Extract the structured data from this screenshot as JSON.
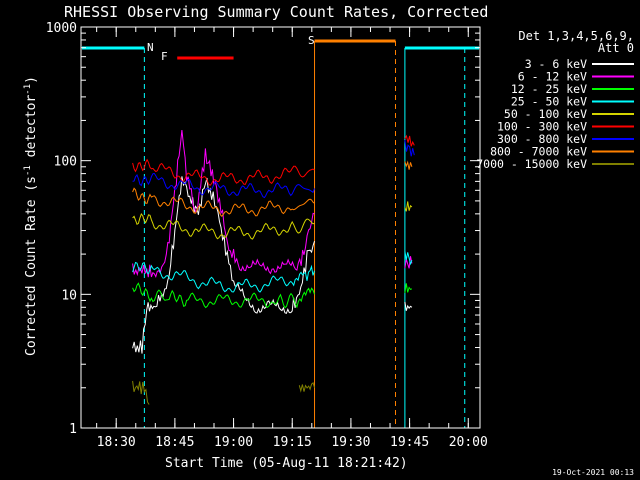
{
  "chart_data": {
    "type": "line",
    "title": "RHESSI Observing Summary Count Rates, Corrected",
    "xlabel": "Start Time (05-Aug-11 18:21:42)",
    "ylabel_main": "Corrected Count Rate (s",
    "ylabel_sup1": "-1",
    "ylabel_mid": " detector",
    "ylabel_sup2": "-1",
    "ylabel_end": ")",
    "y_scale": "log",
    "ylim": [
      1,
      1000
    ],
    "xlim_minutes": [
      18.35,
      20.05
    ],
    "x_ticks": [
      {
        "label": "18:30",
        "t": 18.5
      },
      {
        "label": "18:45",
        "t": 18.75
      },
      {
        "label": "19:00",
        "t": 19.0
      },
      {
        "label": "19:15",
        "t": 19.25
      },
      {
        "label": "19:30",
        "t": 19.5
      },
      {
        "label": "19:45",
        "t": 19.75
      },
      {
        "label": "20:00",
        "t": 20.0
      }
    ],
    "y_ticks": [
      {
        "label": "1",
        "v": 1
      },
      {
        "label": "10",
        "v": 10
      },
      {
        "label": "100",
        "v": 100
      },
      {
        "label": "1000",
        "v": 1000
      }
    ],
    "legend_header": [
      "Det 1,3,4,5,6,9,",
      "Att 0"
    ],
    "legend_placement": "top-right",
    "timestamp": "19-Oct-2021 00:13",
    "markers": [
      {
        "label": "N",
        "color": "#00ffff",
        "t": 18.62
      },
      {
        "label": "F",
        "color": "#ff0000",
        "t": 18.73
      },
      {
        "label": "S",
        "color": "#ff8000",
        "t": 19.35
      }
    ],
    "series": [
      {
        "name": "3 - 6 keV",
        "color": "#ffffff",
        "segments": [
          {
            "t": [
              18.57,
              18.61,
              18.63,
              18.66,
              18.7,
              18.72,
              18.75,
              18.78,
              18.82,
              18.85,
              18.88,
              18.92,
              18.96,
              19.0,
              19.05,
              19.1,
              19.15,
              19.2,
              19.25,
              19.28,
              19.3,
              19.32,
              19.345
            ],
            "v": [
              4,
              4,
              8,
              8,
              10,
              12,
              30,
              75,
              50,
              40,
              70,
              50,
              25,
              12,
              9,
              8,
              8,
              8,
              8,
              10,
              14,
              22,
              25
            ]
          },
          {
            "t": [
              19.73,
              19.76
            ],
            "v": [
              8,
              8
            ]
          }
        ]
      },
      {
        "name": "6 - 12 keV",
        "color": "#ff00ff",
        "segments": [
          {
            "t": [
              18.57,
              18.61,
              18.65,
              18.7,
              18.72,
              18.75,
              18.78,
              18.8,
              18.84,
              18.88,
              18.91,
              18.94,
              18.98,
              19.02,
              19.07,
              19.12,
              19.17,
              19.22,
              19.27,
              19.3,
              19.32,
              19.345
            ],
            "v": [
              15,
              15,
              15,
              16,
              22,
              60,
              170,
              80,
              40,
              110,
              80,
              50,
              22,
              17,
              16,
              16,
              16,
              16,
              16,
              20,
              30,
              40
            ]
          },
          {
            "t": [
              19.73,
              19.76
            ],
            "v": [
              17,
              17
            ]
          }
        ]
      },
      {
        "name": "12 - 25 keV",
        "color": "#00ff00",
        "segments": [
          {
            "t": [
              18.57,
              18.65,
              18.72,
              18.8,
              18.9,
              19.0,
              19.1,
              19.2,
              19.27,
              19.32,
              19.345
            ],
            "v": [
              11,
              10,
              9.5,
              9,
              9,
              9,
              9,
              9,
              9,
              10,
              10
            ]
          },
          {
            "t": [
              19.73,
              19.76
            ],
            "v": [
              11,
              11
            ]
          }
        ]
      },
      {
        "name": "25 - 50 keV",
        "color": "#00ffff",
        "segments": [
          {
            "t": [
              18.57,
              18.65,
              18.75,
              18.85,
              18.95,
              19.05,
              19.15,
              19.25,
              19.3,
              19.345
            ],
            "v": [
              16,
              15,
              14,
              12.5,
              11.5,
              11.5,
              12,
              13,
              14,
              15
            ]
          },
          {
            "t": [
              19.73,
              19.76
            ],
            "v": [
              20,
              18
            ]
          }
        ]
      },
      {
        "name": "50 - 100 keV",
        "color": "#d4d400",
        "segments": [
          {
            "t": [
              18.57,
              18.65,
              18.75,
              18.85,
              18.95,
              19.05,
              19.15,
              19.25,
              19.345
            ],
            "v": [
              37,
              35,
              32,
              30,
              29,
              29,
              30,
              32,
              34
            ]
          },
          {
            "t": [
              19.73,
              19.76
            ],
            "v": [
              45,
              45
            ]
          }
        ]
      },
      {
        "name": "100 - 300 keV",
        "color": "#ff0000",
        "segments": [
          {
            "t": [
              18.57,
              18.65,
              18.75,
              18.85,
              18.95,
              19.05,
              19.15,
              19.25,
              19.345
            ],
            "v": [
              95,
              90,
              80,
              75,
              73,
              74,
              76,
              80,
              85
            ]
          },
          {
            "t": [
              19.73,
              19.75,
              19.77
            ],
            "v": [
              150,
              140,
              130
            ]
          }
        ]
      },
      {
        "name": "300 - 800 keV",
        "color": "#0000ff",
        "segments": [
          {
            "t": [
              18.57,
              18.65,
              18.75,
              18.85,
              18.95,
              19.05,
              19.15,
              19.25,
              19.345
            ],
            "v": [
              75,
              72,
              67,
              63,
              61,
              60,
              60,
              61,
              62
            ]
          },
          {
            "t": [
              19.73,
              19.75,
              19.77
            ],
            "v": [
              130,
              120,
              110
            ]
          }
        ]
      },
      {
        "name": "800 - 7000 keV",
        "color": "#ff8000",
        "segments": [
          {
            "t": [
              18.57,
              18.65,
              18.75,
              18.85,
              18.95,
              19.05,
              19.15,
              19.25,
              19.345
            ],
            "v": [
              56,
              53,
              48,
              45,
              43,
              43,
              44,
              46,
              48
            ]
          },
          {
            "t": [
              19.73,
              19.76
            ],
            "v": [
              95,
              90
            ]
          }
        ]
      },
      {
        "name": "7000 - 15000 keV",
        "color": "#808000",
        "segments": [
          {
            "t": [
              18.57,
              18.6,
              18.62,
              18.64
            ],
            "v": [
              2,
              2,
              2,
              1.5
            ]
          },
          {
            "t": [
              19.28,
              19.3,
              19.32,
              19.345
            ],
            "v": [
              2,
              2,
              2,
              2
            ]
          }
        ]
      }
    ]
  }
}
